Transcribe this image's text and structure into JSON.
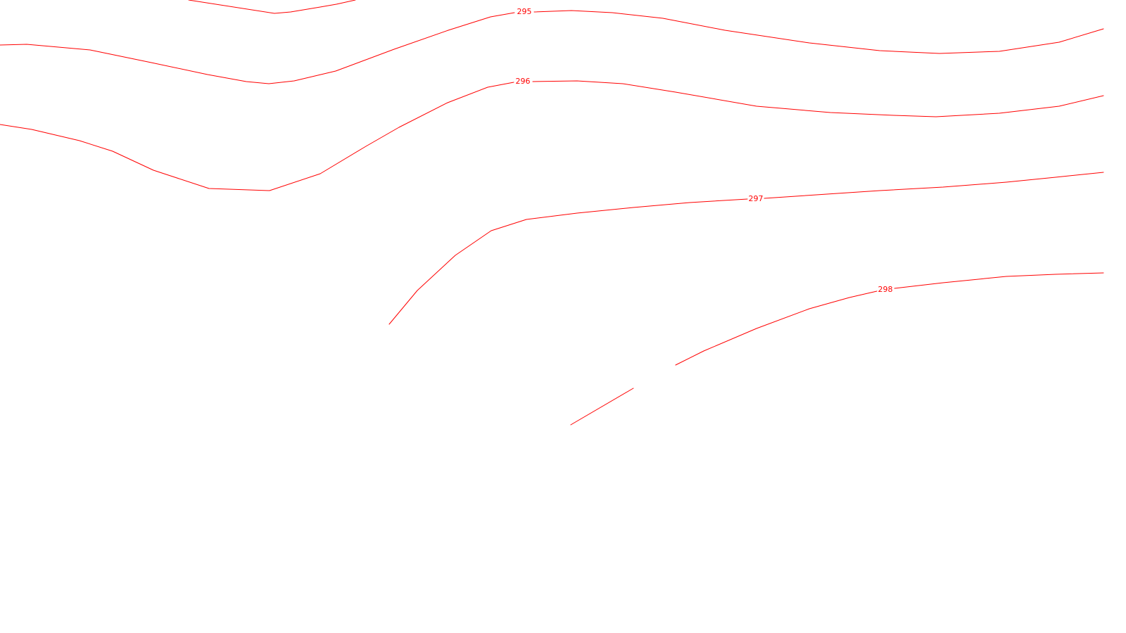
{
  "map": {
    "line_color": "#ff0000",
    "contours": [
      {
        "id": "contour-295",
        "label": "295"
      },
      {
        "id": "contour-296",
        "label": "296"
      },
      {
        "id": "contour-297",
        "label": "297"
      },
      {
        "id": "contour-298",
        "label": "298"
      }
    ]
  }
}
